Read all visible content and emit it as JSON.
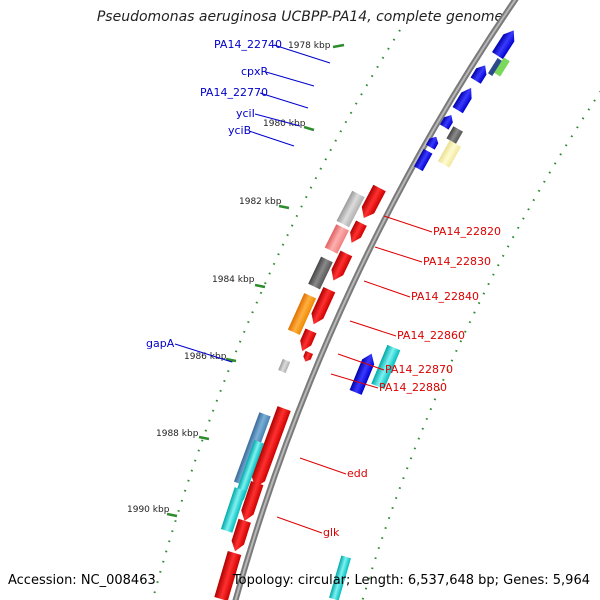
{
  "title": "Pseudomonas aeruginosa UCBPP-PA14, complete genome",
  "footer": {
    "accession": "Accession: NC_008463",
    "summary": "Topology: circular; Length: 6,537,648 bp; Genes: 5,964"
  },
  "colors": {
    "backbone": "#808080",
    "tick": "#2e8b2e",
    "forward_label": "#0000cc",
    "reverse_label": "#dd0000"
  },
  "ticks": [
    {
      "label": "1978 kbp"
    },
    {
      "label": "1980 kbp"
    },
    {
      "label": "1982 kbp"
    },
    {
      "label": "1984 kbp"
    },
    {
      "label": "1986 kbp"
    },
    {
      "label": "1988 kbp"
    },
    {
      "label": "1990 kbp"
    }
  ],
  "gene_labels": {
    "PA14_22740": "PA14_22740",
    "cpxR": "cpxR",
    "PA14_22770": "PA14_22770",
    "yciI": "yciI",
    "yciB": "yciB",
    "gapA": "gapA",
    "PA14_22820": "PA14_22820",
    "PA14_22830": "PA14_22830",
    "PA14_22840": "PA14_22840",
    "PA14_22860": "PA14_22860",
    "PA14_22870": "PA14_22870",
    "PA14_22880": "PA14_22880",
    "edd": "edd",
    "glk": "glk"
  }
}
